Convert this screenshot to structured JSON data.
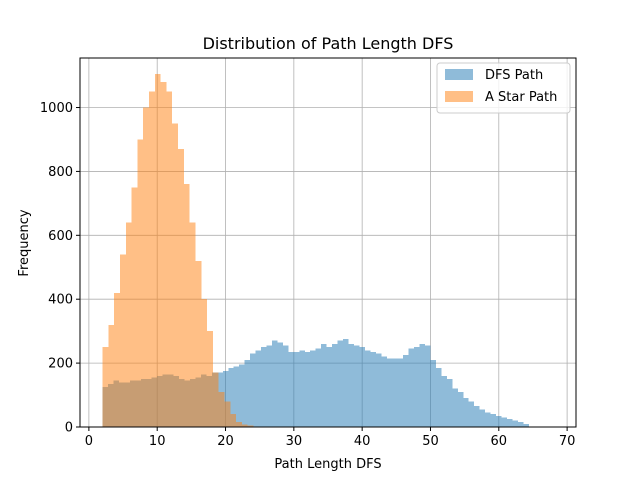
{
  "chart_data": {
    "type": "bar",
    "subtype": "histogram",
    "title": "Distribution of Path Length DFS",
    "xlabel": "Path Length DFS",
    "ylabel": "Frequency",
    "xlim": [
      -1.3,
      71.3
    ],
    "ylim": [
      0,
      1155
    ],
    "xticks": [
      0,
      10,
      20,
      30,
      40,
      50,
      60,
      70
    ],
    "yticks": [
      0,
      200,
      400,
      600,
      800,
      1000
    ],
    "grid": true,
    "legend_position": "top-right",
    "series": [
      {
        "name": "DFS Path",
        "color": "#1f77b4",
        "alpha": 0.5,
        "bin_start": 2,
        "bin_width": 0.8,
        "values": [
          125,
          135,
          145,
          140,
          140,
          145,
          145,
          150,
          150,
          155,
          160,
          165,
          165,
          160,
          150,
          145,
          150,
          155,
          165,
          160,
          170,
          170,
          175,
          185,
          190,
          195,
          210,
          230,
          240,
          250,
          255,
          270,
          265,
          255,
          235,
          235,
          240,
          235,
          240,
          245,
          260,
          250,
          260,
          270,
          275,
          260,
          255,
          250,
          240,
          235,
          230,
          220,
          215,
          215,
          215,
          225,
          245,
          250,
          260,
          255,
          210,
          185,
          160,
          150,
          120,
          110,
          90,
          80,
          65,
          55,
          45,
          40,
          35,
          30,
          25,
          20,
          15,
          10
        ]
      },
      {
        "name": "A Star Path",
        "color": "#ff7f0e",
        "alpha": 0.5,
        "bin_start": 2,
        "bin_width": 0.85,
        "values": [
          250,
          320,
          420,
          540,
          640,
          750,
          900,
          1000,
          1050,
          1105,
          1080,
          1050,
          950,
          870,
          760,
          640,
          520,
          400,
          300,
          170,
          110,
          80,
          40,
          15,
          8,
          4
        ]
      }
    ]
  }
}
